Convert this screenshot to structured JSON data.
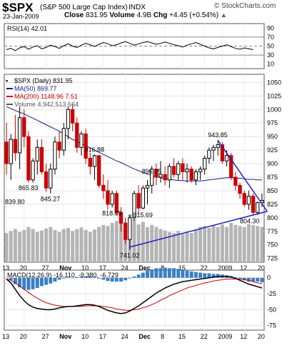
{
  "header": {
    "symbol": "$SPX",
    "name": "(S&P 500 Large Cap Index)",
    "exchange": "INDX",
    "date": "23-Jan-2009",
    "close_label": "Close",
    "close": "831.95",
    "volume_label": "Volume",
    "volume": "4.9B",
    "chg_label": "Chg",
    "chg": "+4.45 (+0.54%)",
    "chg_arrow": "▲",
    "brand": "© StockCharts.com"
  },
  "colors": {
    "up": "#000000",
    "down": "#cc0000",
    "ma50": "#1a1a8c",
    "ma200": "#cc0000",
    "volume": "#b4b4b4",
    "trendline": "#2020c0",
    "rsi": "#000000",
    "macd": "#000000",
    "signal": "#cc0000",
    "histogram": "#3a7fc4"
  },
  "chart_data": [
    {
      "type": "line",
      "title": "RSI(14) 42.01",
      "yticks": [
        90,
        70,
        50,
        30,
        10
      ],
      "ylim": [
        0,
        100
      ],
      "guide_lines": [
        70,
        50,
        30
      ],
      "values": [
        42,
        45,
        40,
        46,
        49,
        43,
        48,
        51,
        44,
        47,
        52,
        49,
        45,
        51,
        55,
        50,
        47,
        52,
        56,
        53,
        49,
        54,
        58,
        55,
        51,
        53,
        57,
        60,
        56,
        52,
        55,
        58,
        60,
        57,
        54,
        56,
        59,
        56,
        53,
        51,
        48,
        52,
        55,
        58,
        54,
        50,
        46,
        44,
        47,
        50,
        53,
        49,
        45,
        43,
        46,
        44,
        42
      ]
    },
    {
      "type": "candlestick",
      "legend": [
        "$SPX (Daily) 831.95",
        "MA(50) 869.77",
        "MA(200) 1148.96 7.51",
        "Volume 4,942,513,664"
      ],
      "yticks": [
        1050,
        1025,
        1000,
        975,
        950,
        925,
        900,
        875,
        850,
        825,
        800,
        775,
        750,
        725
      ],
      "ylim": [
        718,
        1065
      ],
      "xticks": [
        "13",
        "20",
        "27",
        "Nov",
        "10",
        "17",
        "24",
        "Dec",
        "8",
        "15",
        "22",
        "2009",
        "12",
        "20"
      ],
      "annotations": [
        {
          "label": "839.80",
          "value": 839.8,
          "index": 0
        },
        {
          "label": "865.83",
          "value": 865.83,
          "index": 5
        },
        {
          "label": "845.27",
          "value": 845.27,
          "index": 10
        },
        {
          "label": "916.88",
          "value": 916.88,
          "index": 20
        },
        {
          "label": "818.69",
          "value": 818.69,
          "index": 24
        },
        {
          "label": "741.02",
          "value": 741.02,
          "index": 28
        },
        {
          "label": "815.69",
          "value": 815.69,
          "index": 31
        },
        {
          "label": "896.25",
          "value": 896.25,
          "index": 33
        },
        {
          "label": "943.85",
          "value": 943.85,
          "index": 48
        },
        {
          "label": "804.30",
          "value": 804.3,
          "index": 57
        }
      ],
      "candles": [
        [
          940,
          975,
          880,
          900
        ],
        [
          900,
          955,
          870,
          945
        ],
        [
          945,
          990,
          905,
          920
        ],
        [
          920,
          1005,
          890,
          985
        ],
        [
          985,
          1000,
          930,
          950
        ],
        [
          950,
          960,
          865,
          870
        ],
        [
          870,
          910,
          865,
          905
        ],
        [
          905,
          945,
          880,
          930
        ],
        [
          930,
          945,
          880,
          885
        ],
        [
          885,
          900,
          848,
          855
        ],
        [
          855,
          900,
          845,
          890
        ],
        [
          890,
          950,
          880,
          940
        ],
        [
          940,
          960,
          910,
          925
        ],
        [
          925,
          975,
          915,
          965
        ],
        [
          965,
          1005,
          945,
          1000
        ],
        [
          1000,
          1010,
          960,
          975
        ],
        [
          975,
          985,
          920,
          930
        ],
        [
          930,
          960,
          915,
          955
        ],
        [
          955,
          965,
          900,
          910
        ],
        [
          910,
          920,
          880,
          895
        ],
        [
          895,
          917,
          870,
          915
        ],
        [
          915,
          915,
          855,
          860
        ],
        [
          860,
          880,
          835,
          850
        ],
        [
          850,
          870,
          815,
          825
        ],
        [
          825,
          850,
          819,
          845
        ],
        [
          845,
          850,
          805,
          810
        ],
        [
          810,
          820,
          775,
          790
        ],
        [
          790,
          800,
          752,
          760
        ],
        [
          760,
          805,
          741,
          800
        ],
        [
          800,
          850,
          795,
          845
        ],
        [
          845,
          860,
          805,
          818
        ],
        [
          818,
          860,
          816,
          855
        ],
        [
          855,
          870,
          825,
          860
        ],
        [
          860,
          896,
          845,
          890
        ],
        [
          890,
          900,
          860,
          875
        ],
        [
          875,
          905,
          865,
          880
        ],
        [
          880,
          895,
          860,
          870
        ],
        [
          870,
          900,
          855,
          895
        ],
        [
          895,
          910,
          875,
          880
        ],
        [
          880,
          905,
          870,
          900
        ],
        [
          900,
          910,
          870,
          885
        ],
        [
          885,
          900,
          865,
          890
        ],
        [
          890,
          895,
          865,
          870
        ],
        [
          870,
          890,
          860,
          885
        ],
        [
          885,
          895,
          870,
          890
        ],
        [
          890,
          915,
          880,
          910
        ],
        [
          910,
          930,
          900,
          925
        ],
        [
          925,
          935,
          905,
          930
        ],
        [
          930,
          944,
          915,
          935
        ],
        [
          935,
          940,
          900,
          905
        ],
        [
          905,
          925,
          895,
          915
        ],
        [
          915,
          920,
          870,
          875
        ],
        [
          875,
          885,
          850,
          860
        ],
        [
          860,
          865,
          835,
          845
        ],
        [
          845,
          850,
          820,
          825
        ],
        [
          825,
          850,
          815,
          840
        ],
        [
          840,
          845,
          804,
          810
        ],
        [
          810,
          830,
          805,
          828
        ],
        [
          828,
          845,
          820,
          832
        ]
      ],
      "ma50": [
        1005,
        1002,
        998,
        995,
        992,
        988,
        984,
        980,
        976,
        972,
        968,
        964,
        960,
        955,
        950,
        945,
        941,
        937,
        933,
        929,
        925,
        921,
        917,
        913,
        909,
        905,
        902,
        898,
        894,
        890,
        887,
        884,
        881,
        878,
        876,
        874,
        872,
        871,
        870,
        869,
        869,
        868,
        868,
        868,
        868,
        869,
        870,
        871,
        872,
        873,
        874,
        874,
        873,
        873,
        872,
        871,
        871,
        870,
        870
      ],
      "volume": [
        0.58,
        0.62,
        0.66,
        0.6,
        0.64,
        0.7,
        0.66,
        0.6,
        0.63,
        0.67,
        0.7,
        0.64,
        0.6,
        0.66,
        0.68,
        0.62,
        0.66,
        0.69,
        0.64,
        0.6,
        0.65,
        0.7,
        0.74,
        0.72,
        0.78,
        0.82,
        0.86,
        0.8,
        0.95,
        0.85,
        0.75,
        0.8,
        0.7,
        0.74,
        0.7,
        0.66,
        0.63,
        0.6,
        0.58,
        0.62,
        0.56,
        0.6,
        0.58,
        0.64,
        0.7,
        0.72,
        0.68,
        0.74,
        0.7,
        0.75,
        0.7,
        0.78,
        0.74,
        0.72,
        0.7,
        0.76,
        0.74,
        0.72,
        0.7
      ],
      "trendlines": [
        {
          "from": [
            28,
            746
          ],
          "to": [
            60,
            812
          ]
        },
        {
          "from": [
            48,
            943
          ],
          "to": [
            60,
            812
          ]
        }
      ]
    },
    {
      "type": "line",
      "title": "MACD(12,26,9) -16.110, -9.380, -6.729",
      "yticks": [
        0,
        -25,
        -50,
        -75
      ],
      "ylim": [
        -82,
        12
      ],
      "macd": [
        -2,
        -8,
        -18,
        -28,
        -36,
        -42,
        -46,
        -48,
        -49,
        -50,
        -50,
        -49,
        -47,
        -46,
        -45,
        -45,
        -44,
        -43,
        -42,
        -42,
        -43,
        -45,
        -48,
        -51,
        -53,
        -55,
        -56,
        -55,
        -52,
        -48,
        -44,
        -39,
        -34,
        -29,
        -24,
        -20,
        -16,
        -13,
        -10,
        -8,
        -6,
        -5,
        -4,
        -3,
        -2,
        -1,
        0,
        1,
        2,
        2,
        2,
        1,
        -1,
        -4,
        -7,
        -10,
        -12,
        -14,
        -16
      ],
      "signal": [
        -2,
        -4,
        -8,
        -13,
        -18,
        -23,
        -28,
        -32,
        -36,
        -39,
        -41,
        -43,
        -44,
        -45,
        -45,
        -45,
        -45,
        -45,
        -44,
        -44,
        -44,
        -44,
        -45,
        -46,
        -47,
        -49,
        -50,
        -51,
        -51,
        -50,
        -49,
        -47,
        -45,
        -42,
        -39,
        -35,
        -32,
        -28,
        -25,
        -22,
        -19,
        -16,
        -14,
        -12,
        -10,
        -8,
        -7,
        -5,
        -4,
        -3,
        -2,
        -2,
        -2,
        -2,
        -3,
        -4,
        -6,
        -8,
        -9
      ],
      "histogram": [
        0,
        -4,
        -10,
        -15,
        -18,
        -19,
        -18,
        -16,
        -13,
        -11,
        -9,
        -6,
        -3,
        -1,
        0,
        0,
        1,
        2,
        2,
        2,
        1,
        -1,
        -3,
        -5,
        -6,
        -6,
        -6,
        -4,
        -1,
        2,
        5,
        8,
        11,
        13,
        15,
        15,
        16,
        15,
        15,
        14,
        13,
        11,
        10,
        9,
        8,
        7,
        7,
        6,
        6,
        5,
        4,
        3,
        1,
        -2,
        -4,
        -6,
        -6,
        -6,
        -7
      ]
    }
  ]
}
